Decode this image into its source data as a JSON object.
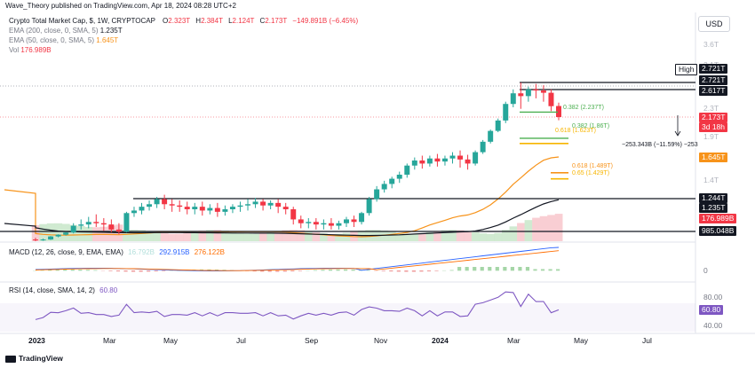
{
  "header": {
    "publisher": "Wave_Theory published on TradingView.com, Apr 18, 2024 08:28 UTC+2"
  },
  "legend": {
    "symbol": "Crypto Total Market Cap, $, 1W, CRYPTOCAP",
    "o_label": "O",
    "o_value": "2.323T",
    "h_label": "H",
    "h_value": "2.384T",
    "l_label": "L",
    "l_value": "2.124T",
    "c_label": "C",
    "c_value": "2.173T",
    "change": "−149.891B (−6.45%)",
    "ema200_label": "EMA (200, close, 0, SMA, 5)",
    "ema200_value": "1.235T",
    "ema50_label": "EMA (50, close, 0, SMA, 5)",
    "ema50_value": "1.645T",
    "vol_label": "Vol",
    "vol_value": "176.989B"
  },
  "currency_button": "USD",
  "price_axis": {
    "ticks": [
      "3.6T",
      "3.1T",
      "2.3T",
      "1.9T",
      "1.4T"
    ],
    "tags": {
      "high_label": "High",
      "high_value": "2.721T",
      "line_2721": "2.721T",
      "line_2617": "2.617T",
      "last_price": "2.173T",
      "countdown": "3d 18h",
      "ema50": "1.645T",
      "line_1244": "1.244T",
      "ema200": "1.235T",
      "volume": "176.989B",
      "line_985": "985.048B"
    }
  },
  "annotations": {
    "fib_382_a": "0.382 (2.237T)",
    "fib_382_b": "0.382 (1.86T)",
    "fib_618_a": "0.618 (1.623T)",
    "fib_618_b": "0.618 (1.489T)",
    "fib_65": "0.65 (1.429T)",
    "measure": "−253.343B (−11.59%) −253"
  },
  "macd": {
    "label": "MACD (12, 26, close, 9, EMA, EMA)",
    "v1": "16.792B",
    "v2": "292.915B",
    "v3": "276.122B",
    "axis_zero": "0"
  },
  "rsi": {
    "label": "RSI (14, close, SMA, 14, 2)",
    "value": "60.80",
    "tick_80": "80.00",
    "tick_40": "40.00",
    "tag": "60.80"
  },
  "time_axis": [
    "2023",
    "Mar",
    "May",
    "Jul",
    "Sep",
    "Nov",
    "2024",
    "Mar",
    "May",
    "Jul"
  ],
  "footer": {
    "brand": "TradingView"
  },
  "colors": {
    "up": "#26a69a",
    "down": "#f23645",
    "ema50": "#f7931a",
    "ema200": "#131722",
    "macd": "#2962ff",
    "signal": "#ff6d00",
    "rsi": "#7e57c2"
  },
  "chart_data": {
    "type": "candlestick",
    "title": "Crypto Total Market Cap, $, 1W, CRYPTOCAP",
    "interval": "1W",
    "unit": "USD (trillions)",
    "candles": [
      {
        "o": 0.8,
        "h": 0.84,
        "c": 0.79,
        "l": 0.76
      },
      {
        "o": 0.79,
        "h": 0.82,
        "c": 0.8,
        "l": 0.77
      },
      {
        "o": 0.8,
        "h": 0.88,
        "c": 0.87,
        "l": 0.79
      },
      {
        "o": 0.87,
        "h": 0.92,
        "c": 0.91,
        "l": 0.85
      },
      {
        "o": 0.91,
        "h": 0.97,
        "c": 0.96,
        "l": 0.89
      },
      {
        "o": 0.96,
        "h": 1.05,
        "c": 1.03,
        "l": 0.94
      },
      {
        "o": 1.03,
        "h": 1.08,
        "c": 1.04,
        "l": 1.0
      },
      {
        "o": 1.04,
        "h": 1.1,
        "c": 1.06,
        "l": 1.01
      },
      {
        "o": 1.06,
        "h": 1.12,
        "c": 1.05,
        "l": 1.02
      },
      {
        "o": 1.05,
        "h": 1.09,
        "c": 1.04,
        "l": 0.99
      },
      {
        "o": 1.04,
        "h": 1.08,
        "c": 1.0,
        "l": 0.97
      },
      {
        "o": 1.0,
        "h": 1.05,
        "c": 0.98,
        "l": 0.92
      },
      {
        "o": 0.98,
        "h": 1.14,
        "c": 1.13,
        "l": 0.96
      },
      {
        "o": 1.13,
        "h": 1.18,
        "c": 1.15,
        "l": 1.1
      },
      {
        "o": 1.15,
        "h": 1.21,
        "c": 1.18,
        "l": 1.12
      },
      {
        "o": 1.18,
        "h": 1.23,
        "c": 1.2,
        "l": 1.15
      },
      {
        "o": 1.2,
        "h": 1.26,
        "c": 1.24,
        "l": 1.17
      },
      {
        "o": 1.24,
        "h": 1.28,
        "c": 1.2,
        "l": 1.16
      },
      {
        "o": 1.2,
        "h": 1.24,
        "c": 1.19,
        "l": 1.14
      },
      {
        "o": 1.19,
        "h": 1.23,
        "c": 1.18,
        "l": 1.14
      },
      {
        "o": 1.18,
        "h": 1.22,
        "c": 1.16,
        "l": 1.12
      },
      {
        "o": 1.16,
        "h": 1.21,
        "c": 1.18,
        "l": 1.12
      },
      {
        "o": 1.18,
        "h": 1.22,
        "c": 1.15,
        "l": 1.11
      },
      {
        "o": 1.15,
        "h": 1.2,
        "c": 1.17,
        "l": 1.12
      },
      {
        "o": 1.17,
        "h": 1.21,
        "c": 1.14,
        "l": 1.1
      },
      {
        "o": 1.14,
        "h": 1.19,
        "c": 1.16,
        "l": 1.11
      },
      {
        "o": 1.16,
        "h": 1.2,
        "c": 1.18,
        "l": 1.13
      },
      {
        "o": 1.18,
        "h": 1.22,
        "c": 1.19,
        "l": 1.14
      },
      {
        "o": 1.19,
        "h": 1.24,
        "c": 1.2,
        "l": 1.15
      },
      {
        "o": 1.2,
        "h": 1.25,
        "c": 1.22,
        "l": 1.17
      },
      {
        "o": 1.22,
        "h": 1.24,
        "c": 1.19,
        "l": 1.15
      },
      {
        "o": 1.19,
        "h": 1.23,
        "c": 1.21,
        "l": 1.16
      },
      {
        "o": 1.21,
        "h": 1.24,
        "c": 1.18,
        "l": 1.13
      },
      {
        "o": 1.18,
        "h": 1.21,
        "c": 1.16,
        "l": 1.12
      },
      {
        "o": 1.16,
        "h": 1.18,
        "c": 1.08,
        "l": 1.04
      },
      {
        "o": 1.08,
        "h": 1.11,
        "c": 1.05,
        "l": 1.01
      },
      {
        "o": 1.05,
        "h": 1.09,
        "c": 1.06,
        "l": 1.01
      },
      {
        "o": 1.06,
        "h": 1.09,
        "c": 1.04,
        "l": 1.0
      },
      {
        "o": 1.04,
        "h": 1.08,
        "c": 1.05,
        "l": 1.0
      },
      {
        "o": 1.05,
        "h": 1.09,
        "c": 1.03,
        "l": 1.0
      },
      {
        "o": 1.03,
        "h": 1.07,
        "c": 1.05,
        "l": 1.0
      },
      {
        "o": 1.05,
        "h": 1.1,
        "c": 1.08,
        "l": 1.02
      },
      {
        "o": 1.08,
        "h": 1.11,
        "c": 1.06,
        "l": 1.02
      },
      {
        "o": 1.06,
        "h": 1.14,
        "c": 1.13,
        "l": 1.04
      },
      {
        "o": 1.13,
        "h": 1.26,
        "c": 1.24,
        "l": 1.11
      },
      {
        "o": 1.24,
        "h": 1.36,
        "c": 1.33,
        "l": 1.22
      },
      {
        "o": 1.33,
        "h": 1.41,
        "c": 1.38,
        "l": 1.3
      },
      {
        "o": 1.38,
        "h": 1.45,
        "c": 1.43,
        "l": 1.34
      },
      {
        "o": 1.43,
        "h": 1.5,
        "c": 1.47,
        "l": 1.39
      },
      {
        "o": 1.47,
        "h": 1.58,
        "c": 1.56,
        "l": 1.44
      },
      {
        "o": 1.56,
        "h": 1.64,
        "c": 1.61,
        "l": 1.52
      },
      {
        "o": 1.61,
        "h": 1.66,
        "c": 1.58,
        "l": 1.53
      },
      {
        "o": 1.58,
        "h": 1.66,
        "c": 1.63,
        "l": 1.55
      },
      {
        "o": 1.63,
        "h": 1.68,
        "c": 1.6,
        "l": 1.55
      },
      {
        "o": 1.6,
        "h": 1.66,
        "c": 1.63,
        "l": 1.56
      },
      {
        "o": 1.63,
        "h": 1.7,
        "c": 1.66,
        "l": 1.58
      },
      {
        "o": 1.66,
        "h": 1.72,
        "c": 1.62,
        "l": 1.54
      },
      {
        "o": 1.62,
        "h": 1.67,
        "c": 1.58,
        "l": 1.52
      },
      {
        "o": 1.58,
        "h": 1.72,
        "c": 1.7,
        "l": 1.56
      },
      {
        "o": 1.7,
        "h": 1.84,
        "c": 1.82,
        "l": 1.68
      },
      {
        "o": 1.82,
        "h": 1.98,
        "c": 1.96,
        "l": 1.8
      },
      {
        "o": 1.96,
        "h": 2.15,
        "c": 2.12,
        "l": 1.94
      },
      {
        "o": 2.12,
        "h": 2.4,
        "c": 2.36,
        "l": 2.08
      },
      {
        "o": 2.36,
        "h": 2.62,
        "c": 2.55,
        "l": 2.3
      },
      {
        "o": 2.55,
        "h": 2.72,
        "c": 2.5,
        "l": 2.28
      },
      {
        "o": 2.5,
        "h": 2.66,
        "c": 2.62,
        "l": 2.4
      },
      {
        "o": 2.62,
        "h": 2.7,
        "c": 2.6,
        "l": 2.46
      },
      {
        "o": 2.6,
        "h": 2.68,
        "c": 2.56,
        "l": 2.4
      },
      {
        "o": 2.56,
        "h": 2.62,
        "c": 2.32,
        "l": 2.25
      },
      {
        "o": 2.323,
        "h": 2.384,
        "c": 2.173,
        "l": 2.124
      }
    ],
    "series": [
      {
        "name": "EMA (50, close, 0, SMA, 5)",
        "last": 1.645
      },
      {
        "name": "EMA (200, close, 0, SMA, 5)",
        "last": 1.235
      }
    ],
    "horizontal_levels": [
      2.721,
      2.617,
      1.244,
      0.985
    ],
    "rsi_last": 60.8,
    "ylim": [
      0.7,
      3.8
    ]
  }
}
